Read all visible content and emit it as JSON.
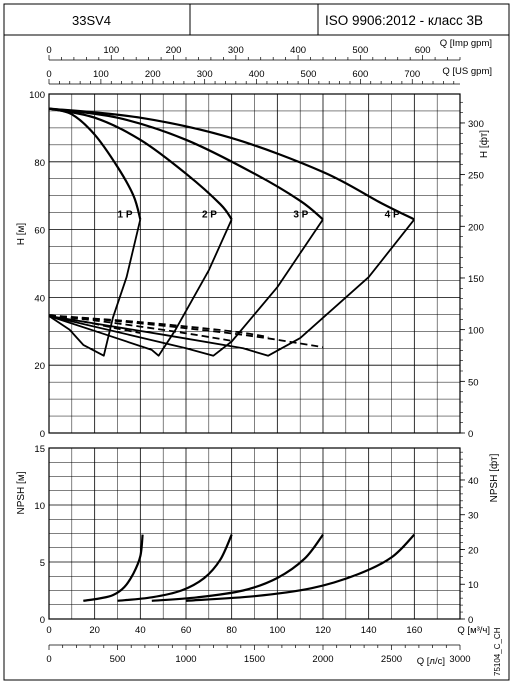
{
  "header": {
    "model": "33SV4",
    "standard": "ISO 9906:2012 - класс 3B"
  },
  "footer_code": "75104_C_CH",
  "chart_data": [
    {
      "type": "line",
      "name": "head",
      "x_axis": {
        "label": "Q [м³/ч]",
        "range": [
          0,
          180
        ],
        "ticks": [
          0,
          20,
          40,
          60,
          80,
          100,
          120,
          140,
          160
        ]
      },
      "y_axis_left": {
        "label": "H [м]",
        "range": [
          0,
          100
        ],
        "ticks": [
          0,
          20,
          40,
          60,
          80,
          100
        ]
      },
      "y_axis_right": {
        "label": "H [фт]",
        "range": [
          0,
          328
        ],
        "ticks": [
          0,
          50,
          100,
          150,
          200,
          250,
          300
        ]
      },
      "top_axes": [
        {
          "label": "Q [Imp gpm]",
          "range": [
            0,
            660
          ],
          "ticks": [
            0,
            100,
            200,
            300,
            400,
            500,
            600
          ]
        },
        {
          "label": "Q [US gpm]",
          "range": [
            0,
            792
          ],
          "ticks": [
            0,
            100,
            200,
            300,
            400,
            500,
            600,
            700
          ]
        }
      ],
      "grid": true,
      "series": [
        {
          "name": "1 P",
          "head": [
            [
              0,
              95.7
            ],
            [
              10,
              94
            ],
            [
              20,
              88
            ],
            [
              30,
              78.5
            ],
            [
              37,
              70
            ],
            [
              40,
              63
            ]
          ],
          "efficiency": [
            [
              0,
              34.5
            ],
            [
              9,
              30.5
            ],
            [
              15,
              26
            ],
            [
              24,
              22.8
            ],
            [
              28,
              34
            ],
            [
              34,
              46
            ],
            [
              40,
              63
            ]
          ],
          "bep_curve": [
            [
              0,
              34.7
            ],
            [
              10,
              33.5
            ],
            [
              20,
              32.2
            ],
            [
              30,
              30.8
            ],
            [
              40,
              29.5
            ]
          ],
          "label_pos": [
            30,
            63.5
          ]
        },
        {
          "name": "2 P",
          "head": [
            [
              0,
              95.7
            ],
            [
              20,
              93
            ],
            [
              40,
              86.5
            ],
            [
              60,
              76.5
            ],
            [
              75,
              67.5
            ],
            [
              80,
              63
            ]
          ],
          "efficiency": [
            [
              0,
              34.5
            ],
            [
              25,
              29
            ],
            [
              45,
              24.5
            ],
            [
              48,
              22.8
            ],
            [
              55,
              30
            ],
            [
              70,
              48
            ],
            [
              80,
              63
            ]
          ],
          "bep_curve": [
            [
              0,
              34.7
            ],
            [
              20,
              33.2
            ],
            [
              40,
              31.4
            ],
            [
              60,
              29.4
            ],
            [
              80,
              27.2
            ]
          ],
          "label_pos": [
            67,
            63.5
          ]
        },
        {
          "name": "3 P",
          "head": [
            [
              0,
              95.7
            ],
            [
              30,
              93
            ],
            [
              60,
              86.5
            ],
            [
              90,
              76.5
            ],
            [
              110,
              68.5
            ],
            [
              120,
              63
            ]
          ],
          "efficiency": [
            [
              0,
              34.5
            ],
            [
              35,
              29
            ],
            [
              60,
              25
            ],
            [
              72,
              22.8
            ],
            [
              80,
              27
            ],
            [
              100,
              43
            ],
            [
              120,
              63
            ]
          ],
          "bep_curve": [
            [
              0,
              34.7
            ],
            [
              30,
              33
            ],
            [
              60,
              30.9
            ],
            [
              90,
              28.5
            ],
            [
              120,
              25.3
            ]
          ],
          "label_pos": [
            107,
            63.5
          ]
        },
        {
          "name": "4 P",
          "head": [
            [
              0,
              95.7
            ],
            [
              40,
              93
            ],
            [
              80,
              87
            ],
            [
              120,
              77
            ],
            [
              145,
              68
            ],
            [
              160,
              63
            ]
          ],
          "efficiency": [
            [
              0,
              34.5
            ],
            [
              50,
              29
            ],
            [
              85,
              25
            ],
            [
              96,
              22.8
            ],
            [
              110,
              28
            ],
            [
              140,
              46
            ],
            [
              160,
              63
            ]
          ],
          "bep_curve": [
            [
              0,
              34.7
            ],
            [
              40,
              32.7
            ],
            [
              80,
              30
            ],
            [
              96,
              28.3
            ]
          ],
          "label_pos": [
            147,
            63.5
          ]
        }
      ]
    },
    {
      "type": "line",
      "name": "npsh",
      "x_axis": {
        "label": "Q [м³/ч]",
        "range": [
          0,
          180
        ],
        "ticks": [
          0,
          20,
          40,
          60,
          80,
          100,
          120,
          140,
          160
        ]
      },
      "y_axis_left": {
        "label": "NPSH [м]",
        "range": [
          0,
          15
        ],
        "ticks": [
          0,
          5,
          10,
          15
        ]
      },
      "y_axis_right": {
        "label": "NPSH [фт]",
        "range": [
          0,
          49.2
        ],
        "ticks": [
          0,
          10,
          20,
          30,
          40
        ]
      },
      "bottom_axis": {
        "label": "Q [л/с]",
        "range": [
          0,
          3000
        ],
        "ticks": [
          0,
          500,
          1000,
          1500,
          2000,
          2500,
          3000
        ]
      },
      "grid": true,
      "series": [
        {
          "name": "1 P",
          "values": [
            [
              15,
              1.6
            ],
            [
              22,
              1.8
            ],
            [
              28,
              2.1
            ],
            [
              33,
              2.8
            ],
            [
              37,
              4.0
            ],
            [
              40,
              5.5
            ],
            [
              41,
              7.4
            ]
          ]
        },
        {
          "name": "2 P",
          "values": [
            [
              30,
              1.6
            ],
            [
              45,
              1.9
            ],
            [
              58,
              2.5
            ],
            [
              68,
              3.6
            ],
            [
              75,
              5.2
            ],
            [
              80,
              7.4
            ]
          ]
        },
        {
          "name": "3 P",
          "values": [
            [
              45,
              1.6
            ],
            [
              65,
              1.9
            ],
            [
              85,
              2.5
            ],
            [
              100,
              3.6
            ],
            [
              112,
              5.3
            ],
            [
              120,
              7.4
            ]
          ]
        },
        {
          "name": "4 P",
          "values": [
            [
              60,
              1.6
            ],
            [
              90,
              2.0
            ],
            [
              115,
              2.7
            ],
            [
              135,
              3.9
            ],
            [
              150,
              5.4
            ],
            [
              160,
              7.4
            ]
          ]
        }
      ]
    }
  ]
}
